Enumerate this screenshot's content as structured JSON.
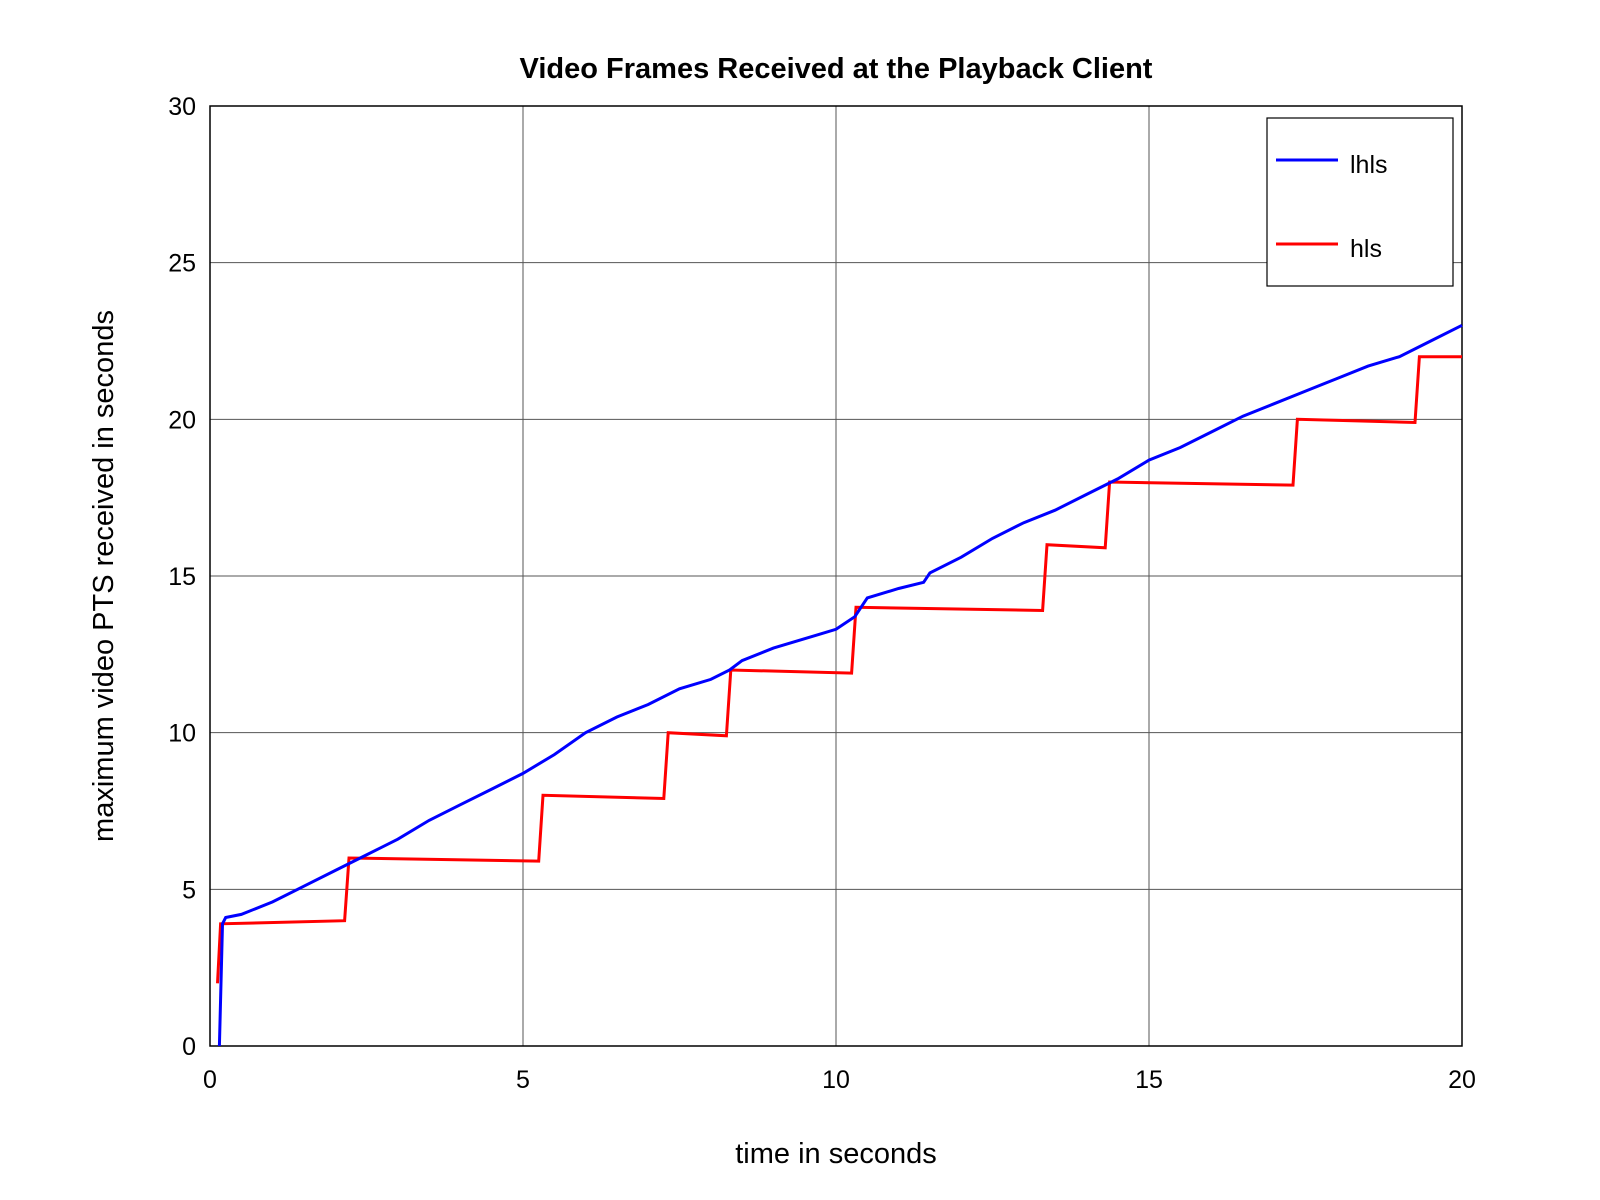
{
  "chart_data": {
    "type": "line",
    "title": "Video Frames Received at the Playback Client",
    "xlabel": "time in seconds",
    "ylabel": "maximum video PTS received in seconds",
    "xlim": [
      0,
      20
    ],
    "ylim": [
      0,
      30
    ],
    "xticks": [
      0,
      5,
      10,
      15,
      20
    ],
    "yticks": [
      0,
      5,
      10,
      15,
      20,
      25,
      30
    ],
    "xtick_labels": [
      "0",
      "5",
      "10",
      "15",
      "20"
    ],
    "ytick_labels": [
      "0",
      "5",
      "10",
      "15",
      "20",
      "25",
      "30"
    ],
    "grid": true,
    "legend_position": "top-right",
    "series": [
      {
        "name": "lhls",
        "color": "#0000ff",
        "x": [
          0.15,
          0.2,
          0.25,
          0.5,
          1.0,
          1.5,
          2.0,
          2.5,
          3.0,
          3.5,
          4.0,
          4.5,
          5.0,
          5.5,
          6.0,
          6.5,
          7.0,
          7.5,
          8.0,
          8.3,
          8.5,
          9.0,
          9.5,
          10.0,
          10.3,
          10.5,
          11.0,
          11.4,
          11.5,
          12.0,
          12.5,
          13.0,
          13.5,
          14.0,
          14.5,
          15.0,
          15.5,
          16.0,
          16.5,
          17.0,
          17.5,
          18.0,
          18.5,
          19.0,
          19.5,
          20.0
        ],
        "y": [
          0.0,
          3.9,
          4.1,
          4.2,
          4.6,
          5.1,
          5.6,
          6.1,
          6.6,
          7.2,
          7.7,
          8.2,
          8.7,
          9.3,
          10.0,
          10.5,
          10.9,
          11.4,
          11.7,
          12.0,
          12.3,
          12.7,
          13.0,
          13.3,
          13.7,
          14.3,
          14.6,
          14.8,
          15.1,
          15.6,
          16.2,
          16.7,
          17.1,
          17.6,
          18.1,
          18.7,
          19.1,
          19.6,
          20.1,
          20.5,
          20.9,
          21.3,
          21.7,
          22.0,
          22.5,
          23.0
        ]
      },
      {
        "name": "hls",
        "color": "#ff0000",
        "x": [
          0.12,
          0.17,
          2.15,
          2.22,
          5.25,
          5.32,
          7.25,
          7.32,
          8.25,
          8.32,
          10.25,
          10.32,
          13.3,
          13.37,
          14.3,
          14.37,
          17.3,
          17.37,
          19.25,
          19.32,
          20.0
        ],
        "y": [
          2.0,
          3.9,
          4.0,
          6.0,
          5.9,
          8.0,
          7.9,
          10.0,
          9.9,
          12.0,
          11.9,
          14.0,
          13.9,
          16.0,
          15.9,
          18.0,
          17.9,
          20.0,
          19.9,
          22.0,
          22.0
        ]
      }
    ]
  }
}
